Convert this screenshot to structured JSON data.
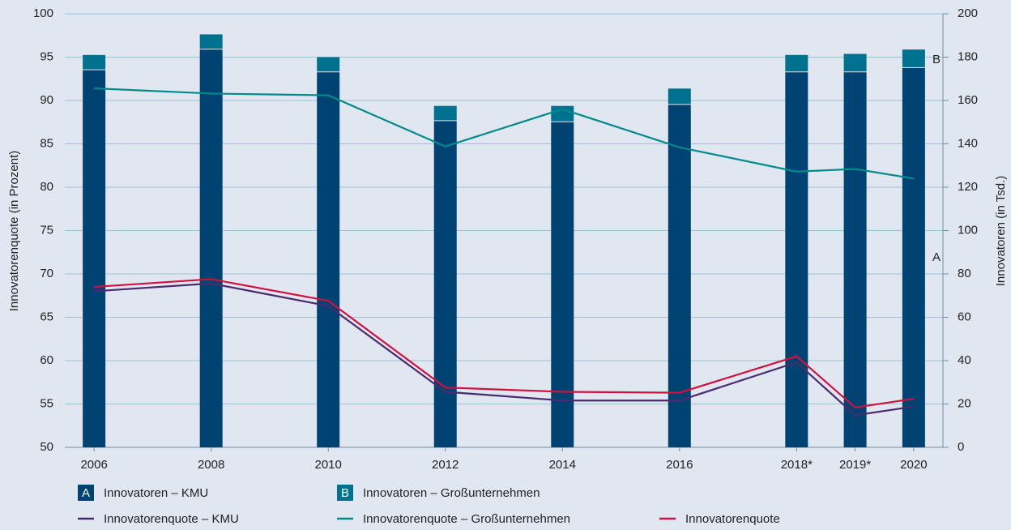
{
  "chart_data": {
    "type": "bar-line",
    "y_label": "Innovatorenquote (in Prozent)",
    "y2_label": "Innovatoren (in Tsd.)",
    "x": [
      2006,
      2008,
      2010,
      2012,
      2014,
      2016,
      2018,
      2019,
      2020
    ],
    "xlim": [
      2005.5,
      2020.5
    ],
    "xticks": [
      2006,
      2008,
      2010,
      2012,
      2014,
      2016,
      {
        "value": 2018,
        "label": "2018*"
      },
      {
        "value": 2019,
        "label": "2019*"
      },
      2020
    ],
    "ylim": [
      50,
      100
    ],
    "yticks": [
      50,
      55,
      60,
      65,
      70,
      75,
      80,
      85,
      90,
      95,
      100
    ],
    "y2lim": [
      0,
      200
    ],
    "y2ticks": [
      0,
      20,
      40,
      60,
      80,
      100,
      120,
      140,
      160,
      180,
      200
    ],
    "grid": true,
    "series": [
      {
        "name": "Innovatoren – KMU",
        "key": "A",
        "type": "bar",
        "axis": "y2",
        "color": "#004373",
        "values": [
          174,
          183.5,
          173,
          150.5,
          150,
          158,
          173,
          173,
          175
        ]
      },
      {
        "name": "Innovatoren – Großunternehmen",
        "key": "B",
        "type": "bar",
        "axis": "y2",
        "color": "#00718f",
        "values": [
          7,
          7,
          7,
          7,
          7.5,
          7.5,
          8,
          8.5,
          8.5
        ]
      },
      {
        "name": "Innovatorenquote – KMU",
        "type": "line",
        "color": "#4b2a6e",
        "values": [
          68.0,
          68.9,
          66.3,
          56.4,
          55.4,
          55.4,
          59.8,
          53.7,
          54.7
        ]
      },
      {
        "name": "Innovatorenquote – Großunternehmen",
        "type": "line",
        "color": "#008a8a",
        "values": [
          91.4,
          90.8,
          90.6,
          84.7,
          89.0,
          84.6,
          81.8,
          82.1,
          81.0
        ]
      },
      {
        "name": "Innovatorenquote",
        "type": "line",
        "color": "#d0113f",
        "values": [
          68.5,
          69.4,
          66.9,
          56.9,
          56.4,
          56.3,
          60.5,
          54.6,
          55.6
        ]
      }
    ],
    "annotations": [
      {
        "text": "A"
      },
      {
        "text": "B"
      }
    ]
  }
}
